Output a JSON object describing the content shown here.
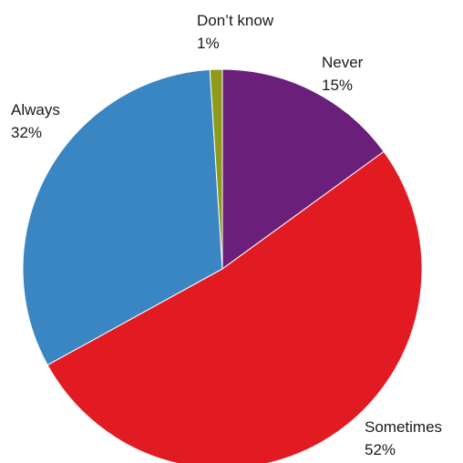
{
  "chart_data": {
    "type": "pie",
    "title": "",
    "slices": [
      {
        "name": "Never",
        "value": 15,
        "label": "15%",
        "color": "#6a1f7a"
      },
      {
        "name": "Sometimes",
        "value": 52,
        "label": "52%",
        "color": "#e21b23"
      },
      {
        "name": "Always",
        "value": 32,
        "label": "32%",
        "color": "#3a86c2"
      },
      {
        "name": "Don’t know",
        "value": 1,
        "label": "1%",
        "color": "#8e9a1a"
      }
    ],
    "start_angle": "12 o'clock",
    "direction": "clockwise",
    "legend": "none",
    "label_placement": "outside"
  }
}
